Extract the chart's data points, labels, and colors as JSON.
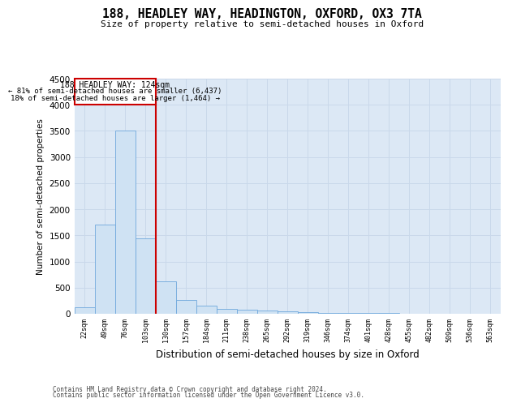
{
  "title": "188, HEADLEY WAY, HEADINGTON, OXFORD, OX3 7TA",
  "subtitle": "Size of property relative to semi-detached houses in Oxford",
  "xlabel": "Distribution of semi-detached houses by size in Oxford",
  "ylabel": "Number of semi-detached properties",
  "property_label": "188 HEADLEY WAY: 124sqm",
  "pct_smaller": 81,
  "count_smaller": 6437,
  "pct_larger": 18,
  "count_larger": 1464,
  "bin_labels": [
    "22sqm",
    "49sqm",
    "76sqm",
    "103sqm",
    "130sqm",
    "157sqm",
    "184sqm",
    "211sqm",
    "238sqm",
    "265sqm",
    "292sqm",
    "319sqm",
    "346sqm",
    "374sqm",
    "401sqm",
    "428sqm",
    "455sqm",
    "482sqm",
    "509sqm",
    "536sqm",
    "563sqm"
  ],
  "bar_values": [
    120,
    1700,
    3500,
    1450,
    620,
    270,
    155,
    100,
    80,
    60,
    45,
    30,
    20,
    15,
    10,
    8,
    5,
    4,
    3,
    2,
    2
  ],
  "bar_color": "#cfe2f3",
  "bar_edge_color": "#6fa8dc",
  "vline_color": "#cc0000",
  "vline_x_idx": 4,
  "annotation_box_color": "#cc0000",
  "grid_color": "#c9d8ea",
  "background_color": "#dce8f5",
  "ylim": [
    0,
    4500
  ],
  "yticks": [
    0,
    500,
    1000,
    1500,
    2000,
    2500,
    3000,
    3500,
    4000,
    4500
  ],
  "footer_line1": "Contains HM Land Registry data © Crown copyright and database right 2024.",
  "footer_line2": "Contains public sector information licensed under the Open Government Licence v3.0."
}
